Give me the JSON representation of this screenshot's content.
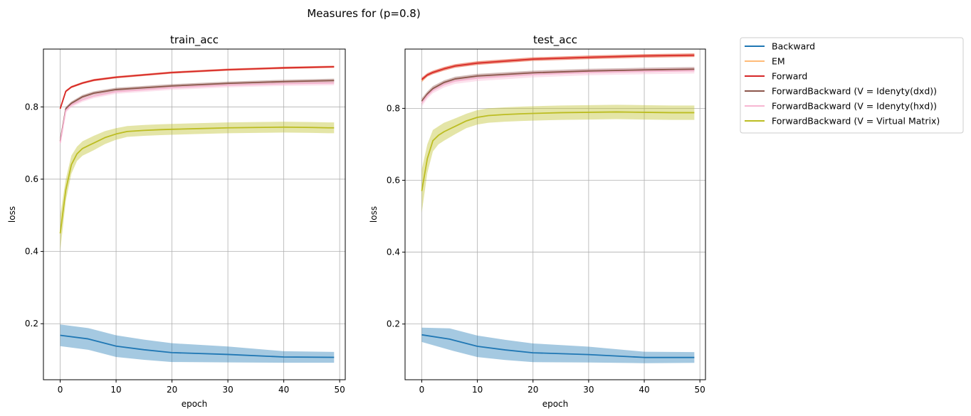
{
  "figure": {
    "suptitle": "Measures for (p=0.8)"
  },
  "colors": {
    "Backward": "#1f77b4",
    "EM": "#ffbb78",
    "Forward": "#d62728",
    "ForwardBackward (V = Idenyty(dxd))": "#8c564b",
    "ForwardBackward (V = Idenyty(hxd))": "#f7b6d2",
    "ForwardBackward (V = Virtual Matrix)": "#bcbd22"
  },
  "legend": {
    "placement": "outside right, top",
    "entries": [
      "Backward",
      "EM",
      "Forward",
      "ForwardBackward (V = Idenyty(dxd))",
      "ForwardBackward (V = Idenyty(hxd))",
      "ForwardBackward (V = Virtual Matrix)"
    ]
  },
  "chart_data": [
    {
      "type": "line",
      "title": "train_acc",
      "xlabel": "epoch",
      "ylabel": "loss",
      "xlim": [
        -3,
        51
      ],
      "ylim": [
        0.045,
        0.96
      ],
      "xticks": [
        0,
        10,
        20,
        30,
        40,
        50
      ],
      "yticks": [
        0.2,
        0.4,
        0.6,
        0.8
      ],
      "grid": true,
      "shaded_band": true,
      "series": [
        {
          "name": "Backward",
          "x": [
            0,
            5,
            10,
            15,
            20,
            30,
            40,
            49
          ],
          "y": [
            0.168,
            0.158,
            0.138,
            0.128,
            0.12,
            0.115,
            0.108,
            0.107
          ],
          "band": [
            0.03,
            0.03,
            0.03,
            0.028,
            0.026,
            0.022,
            0.016,
            0.015
          ]
        },
        {
          "name": "EM",
          "x": [
            0,
            1,
            2,
            4,
            6,
            10,
            20,
            30,
            40,
            49
          ],
          "y": [
            0.795,
            0.843,
            0.855,
            0.866,
            0.874,
            0.882,
            0.895,
            0.903,
            0.908,
            0.911
          ],
          "band": [
            0.004,
            0.003,
            0.003,
            0.003,
            0.003,
            0.003,
            0.003,
            0.003,
            0.003,
            0.003
          ]
        },
        {
          "name": "Forward",
          "x": [
            0,
            1,
            2,
            4,
            6,
            10,
            20,
            30,
            40,
            49
          ],
          "y": [
            0.795,
            0.843,
            0.855,
            0.866,
            0.874,
            0.882,
            0.895,
            0.903,
            0.908,
            0.911
          ],
          "band": [
            0.004,
            0.003,
            0.003,
            0.003,
            0.003,
            0.003,
            0.003,
            0.003,
            0.003,
            0.003
          ]
        },
        {
          "name": "ForwardBackward (V = Idenyty(dxd))",
          "x": [
            0,
            1,
            2,
            4,
            6,
            10,
            20,
            30,
            40,
            49
          ],
          "y": [
            0.705,
            0.795,
            0.81,
            0.828,
            0.838,
            0.848,
            0.858,
            0.865,
            0.87,
            0.873
          ],
          "band": [
            0.005,
            0.005,
            0.005,
            0.005,
            0.005,
            0.005,
            0.005,
            0.005,
            0.005,
            0.005
          ]
        },
        {
          "name": "ForwardBackward (V = Idenyty(hxd))",
          "x": [
            0,
            1,
            2,
            4,
            6,
            10,
            20,
            30,
            40,
            49
          ],
          "y": [
            0.7,
            0.79,
            0.805,
            0.82,
            0.83,
            0.842,
            0.853,
            0.86,
            0.864,
            0.866
          ],
          "band": [
            0.006,
            0.006,
            0.006,
            0.006,
            0.006,
            0.006,
            0.006,
            0.006,
            0.006,
            0.006
          ]
        },
        {
          "name": "ForwardBackward (V = Virtual Matrix)",
          "x": [
            0,
            1,
            2,
            3,
            4,
            6,
            8,
            10,
            12,
            15,
            18,
            20,
            25,
            30,
            35,
            40,
            45,
            48,
            49
          ],
          "y": [
            0.45,
            0.57,
            0.64,
            0.67,
            0.685,
            0.7,
            0.715,
            0.725,
            0.732,
            0.735,
            0.737,
            0.738,
            0.74,
            0.742,
            0.743,
            0.744,
            0.743,
            0.742,
            0.742
          ],
          "band": [
            0.05,
            0.03,
            0.025,
            0.02,
            0.02,
            0.02,
            0.018,
            0.016,
            0.015,
            0.015,
            0.015,
            0.015,
            0.015,
            0.015,
            0.015,
            0.015,
            0.015,
            0.015,
            0.015
          ]
        }
      ]
    },
    {
      "type": "line",
      "title": "test_acc",
      "xlabel": "epoch",
      "ylabel": "loss",
      "xlim": [
        -3,
        51
      ],
      "ylim": [
        0.045,
        0.965
      ],
      "xticks": [
        0,
        10,
        20,
        30,
        40,
        50
      ],
      "yticks": [
        0.2,
        0.4,
        0.6,
        0.8
      ],
      "grid": true,
      "shaded_band": true,
      "series": [
        {
          "name": "Backward",
          "x": [
            0,
            5,
            10,
            15,
            20,
            30,
            40,
            49
          ],
          "y": [
            0.17,
            0.158,
            0.138,
            0.128,
            0.12,
            0.115,
            0.107,
            0.107
          ],
          "band": [
            0.02,
            0.03,
            0.03,
            0.028,
            0.026,
            0.022,
            0.016,
            0.015
          ]
        },
        {
          "name": "EM",
          "x": [
            0,
            1,
            2,
            4,
            6,
            10,
            20,
            30,
            40,
            49
          ],
          "y": [
            0.878,
            0.893,
            0.9,
            0.91,
            0.918,
            0.926,
            0.937,
            0.942,
            0.946,
            0.948
          ],
          "band": [
            0.006,
            0.005,
            0.005,
            0.005,
            0.005,
            0.005,
            0.005,
            0.005,
            0.005,
            0.005
          ]
        },
        {
          "name": "Forward",
          "x": [
            0,
            1,
            2,
            4,
            6,
            10,
            20,
            30,
            40,
            49
          ],
          "y": [
            0.88,
            0.893,
            0.9,
            0.91,
            0.918,
            0.926,
            0.937,
            0.942,
            0.946,
            0.948
          ],
          "band": [
            0.006,
            0.005,
            0.005,
            0.005,
            0.005,
            0.005,
            0.005,
            0.005,
            0.005,
            0.005
          ]
        },
        {
          "name": "ForwardBackward (V = Idenyty(dxd))",
          "x": [
            0,
            1,
            2,
            4,
            6,
            10,
            20,
            30,
            40,
            49
          ],
          "y": [
            0.82,
            0.84,
            0.855,
            0.872,
            0.882,
            0.89,
            0.899,
            0.904,
            0.907,
            0.909
          ],
          "band": [
            0.008,
            0.007,
            0.007,
            0.006,
            0.006,
            0.006,
            0.006,
            0.006,
            0.006,
            0.006
          ]
        },
        {
          "name": "ForwardBackward (V = Idenyty(hxd))",
          "x": [
            0,
            1,
            2,
            4,
            6,
            10,
            20,
            30,
            40,
            49
          ],
          "y": [
            0.815,
            0.835,
            0.85,
            0.866,
            0.876,
            0.884,
            0.894,
            0.9,
            0.903,
            0.905
          ],
          "band": [
            0.01,
            0.008,
            0.008,
            0.008,
            0.008,
            0.008,
            0.008,
            0.008,
            0.008,
            0.008
          ]
        },
        {
          "name": "ForwardBackward (V = Virtual Matrix)",
          "x": [
            0,
            1,
            2,
            3,
            4,
            6,
            8,
            10,
            12,
            15,
            18,
            20,
            25,
            30,
            35,
            40,
            45,
            48,
            49
          ],
          "y": [
            0.57,
            0.66,
            0.71,
            0.725,
            0.735,
            0.75,
            0.765,
            0.775,
            0.78,
            0.783,
            0.785,
            0.786,
            0.788,
            0.789,
            0.79,
            0.789,
            0.788,
            0.788,
            0.788
          ],
          "band": [
            0.06,
            0.04,
            0.03,
            0.025,
            0.025,
            0.022,
            0.02,
            0.02,
            0.02,
            0.02,
            0.02,
            0.02,
            0.02,
            0.02,
            0.02,
            0.02,
            0.02,
            0.02,
            0.02
          ]
        }
      ]
    }
  ]
}
